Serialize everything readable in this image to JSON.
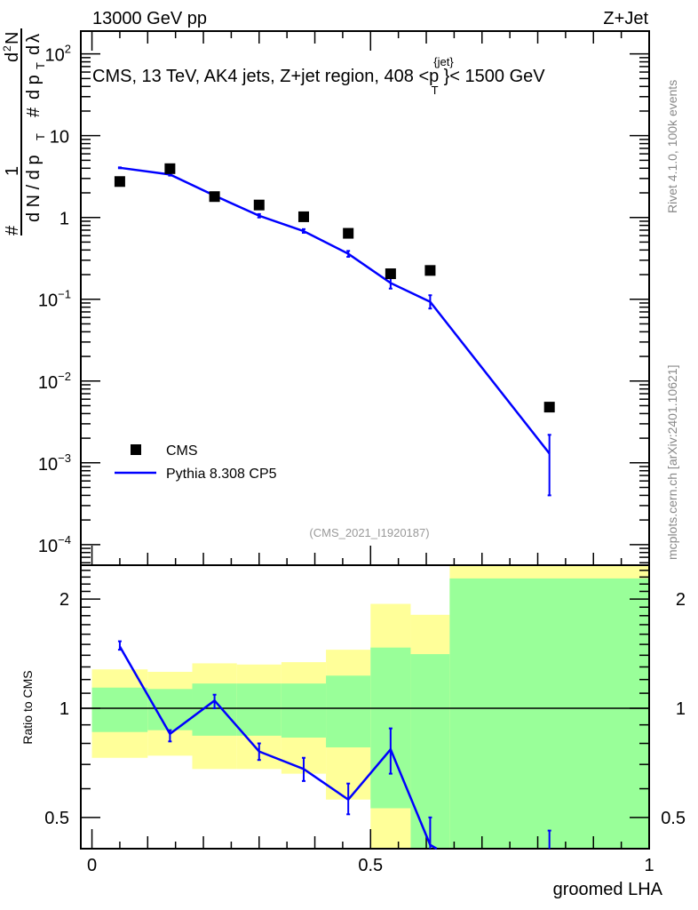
{
  "header": {
    "left": "13000 GeV pp",
    "right": "Z+Jet"
  },
  "side_labels": {
    "rivet": "Rivet 4.1.0,  100k events",
    "mcplots": "mcplots.cern.ch [arXiv:2401.10621]"
  },
  "chart_data": [
    {
      "type": "scatter",
      "panel": "main",
      "title": "CMS, 13 TeV, AK4 jets, Z+jet region, 408 <p_T^{jet}< 1500 GeV",
      "title_parts": {
        "main": "CMS, 13 TeV, AK4 jets, Z+jet region, 408 <p",
        "sup": "{jet}",
        "sub": "T",
        "tail": "}< 1500 GeV"
      },
      "ylabel_parts": [
        "#",
        "1",
        "d N / d p",
        "T",
        "#",
        "d",
        "2",
        "N",
        "d p",
        "T",
        "d",
        "λ"
      ],
      "ylabel": "1/(dN/dp_T) d²N/(dp_T dλ)",
      "yscale": "log",
      "ylim": [
        5.6e-05,
        190
      ],
      "xlim": [
        -0.02,
        1.0
      ],
      "ytick_labels": [
        {
          "v": 100,
          "base": "10",
          "exp": "2"
        },
        {
          "v": 10,
          "base": "10",
          "exp": ""
        },
        {
          "v": 1,
          "base": "1",
          "exp": ""
        },
        {
          "v": 0.1,
          "base": "10",
          "exp": "−1"
        },
        {
          "v": 0.01,
          "base": "10",
          "exp": "−2"
        },
        {
          "v": 0.001,
          "base": "10",
          "exp": "−3"
        },
        {
          "v": 0.0001,
          "base": "10",
          "exp": "−4"
        }
      ],
      "annotation": "(CMS_2021_I1920187)",
      "legend": {
        "placement": "bottom-left",
        "entries": [
          "CMS",
          "Pythia 8.308 CP5"
        ]
      },
      "series": [
        {
          "name": "CMS",
          "color": "#000000",
          "marker": "square",
          "x": [
            0.05,
            0.14,
            0.22,
            0.3,
            0.38,
            0.46,
            0.536,
            0.607,
            0.821
          ],
          "y": [
            2.75,
            3.95,
            1.8,
            1.42,
            1.02,
            0.64,
            0.205,
            0.225,
            0.0048
          ]
        },
        {
          "name": "Pythia 8.308 CP5",
          "color": "#0000ff",
          "marker": "line",
          "x": [
            0.05,
            0.14,
            0.22,
            0.3,
            0.38,
            0.46,
            0.536,
            0.607,
            0.821
          ],
          "y": [
            4.05,
            3.35,
            1.85,
            1.05,
            0.68,
            0.36,
            0.158,
            0.093,
            0.0013
          ],
          "yerr_low": [
            4.0,
            3.25,
            1.8,
            1.0,
            0.65,
            0.33,
            0.135,
            0.077,
            0.0004
          ],
          "yerr_high": [
            4.1,
            3.45,
            1.9,
            1.1,
            0.72,
            0.39,
            0.185,
            0.112,
            0.0022
          ]
        }
      ]
    },
    {
      "type": "line",
      "panel": "ratio",
      "ylabel": "Ratio to CMS",
      "xlabel": "groomed LHA",
      "yscale": "log",
      "ylim": [
        0.41,
        2.48
      ],
      "xlim": [
        -0.02,
        1.0
      ],
      "ytick_labels": [
        {
          "v": 2,
          "t": "2"
        },
        {
          "v": 1,
          "t": "1"
        },
        {
          "v": 0.5,
          "t": "0.5"
        }
      ],
      "xtick_labels": [
        {
          "v": 0,
          "t": "0"
        },
        {
          "v": 0.5,
          "t": "0.5"
        },
        {
          "v": 1,
          "t": "1"
        }
      ],
      "bands": {
        "edges": [
          0,
          0.1,
          0.18,
          0.26,
          0.34,
          0.42,
          0.5,
          0.572,
          0.642,
          1.0
        ],
        "yellow_color": "#ffff99",
        "green_color": "#99ff99",
        "yellow_high": [
          1.28,
          1.26,
          1.33,
          1.32,
          1.34,
          1.45,
          1.94,
          1.81,
          3.0
        ],
        "green_high": [
          1.14,
          1.13,
          1.17,
          1.17,
          1.17,
          1.23,
          1.47,
          1.41,
          2.28
        ],
        "green_low": [
          0.86,
          0.87,
          0.84,
          0.84,
          0.83,
          0.78,
          0.53,
          0.3,
          0.3
        ],
        "yellow_low": [
          0.73,
          0.74,
          0.68,
          0.68,
          0.66,
          0.56,
          0.3,
          0.3,
          0.3
        ]
      },
      "series": [
        {
          "name": "Pythia 8.308 CP5 / CMS",
          "color": "#0000ff",
          "x": [
            0.05,
            0.14,
            0.22,
            0.3,
            0.38,
            0.46,
            0.536,
            0.607,
            0.821
          ],
          "y": [
            1.48,
            0.85,
            1.05,
            0.76,
            0.68,
            0.56,
            0.77,
            0.42,
            0.27
          ],
          "yerr_low": [
            1.45,
            0.81,
            1.0,
            0.72,
            0.63,
            0.51,
            0.66,
            0.3,
            0.08
          ],
          "yerr_high": [
            1.53,
            0.87,
            1.09,
            0.8,
            0.73,
            0.62,
            0.88,
            0.5,
            0.46
          ]
        }
      ]
    }
  ]
}
